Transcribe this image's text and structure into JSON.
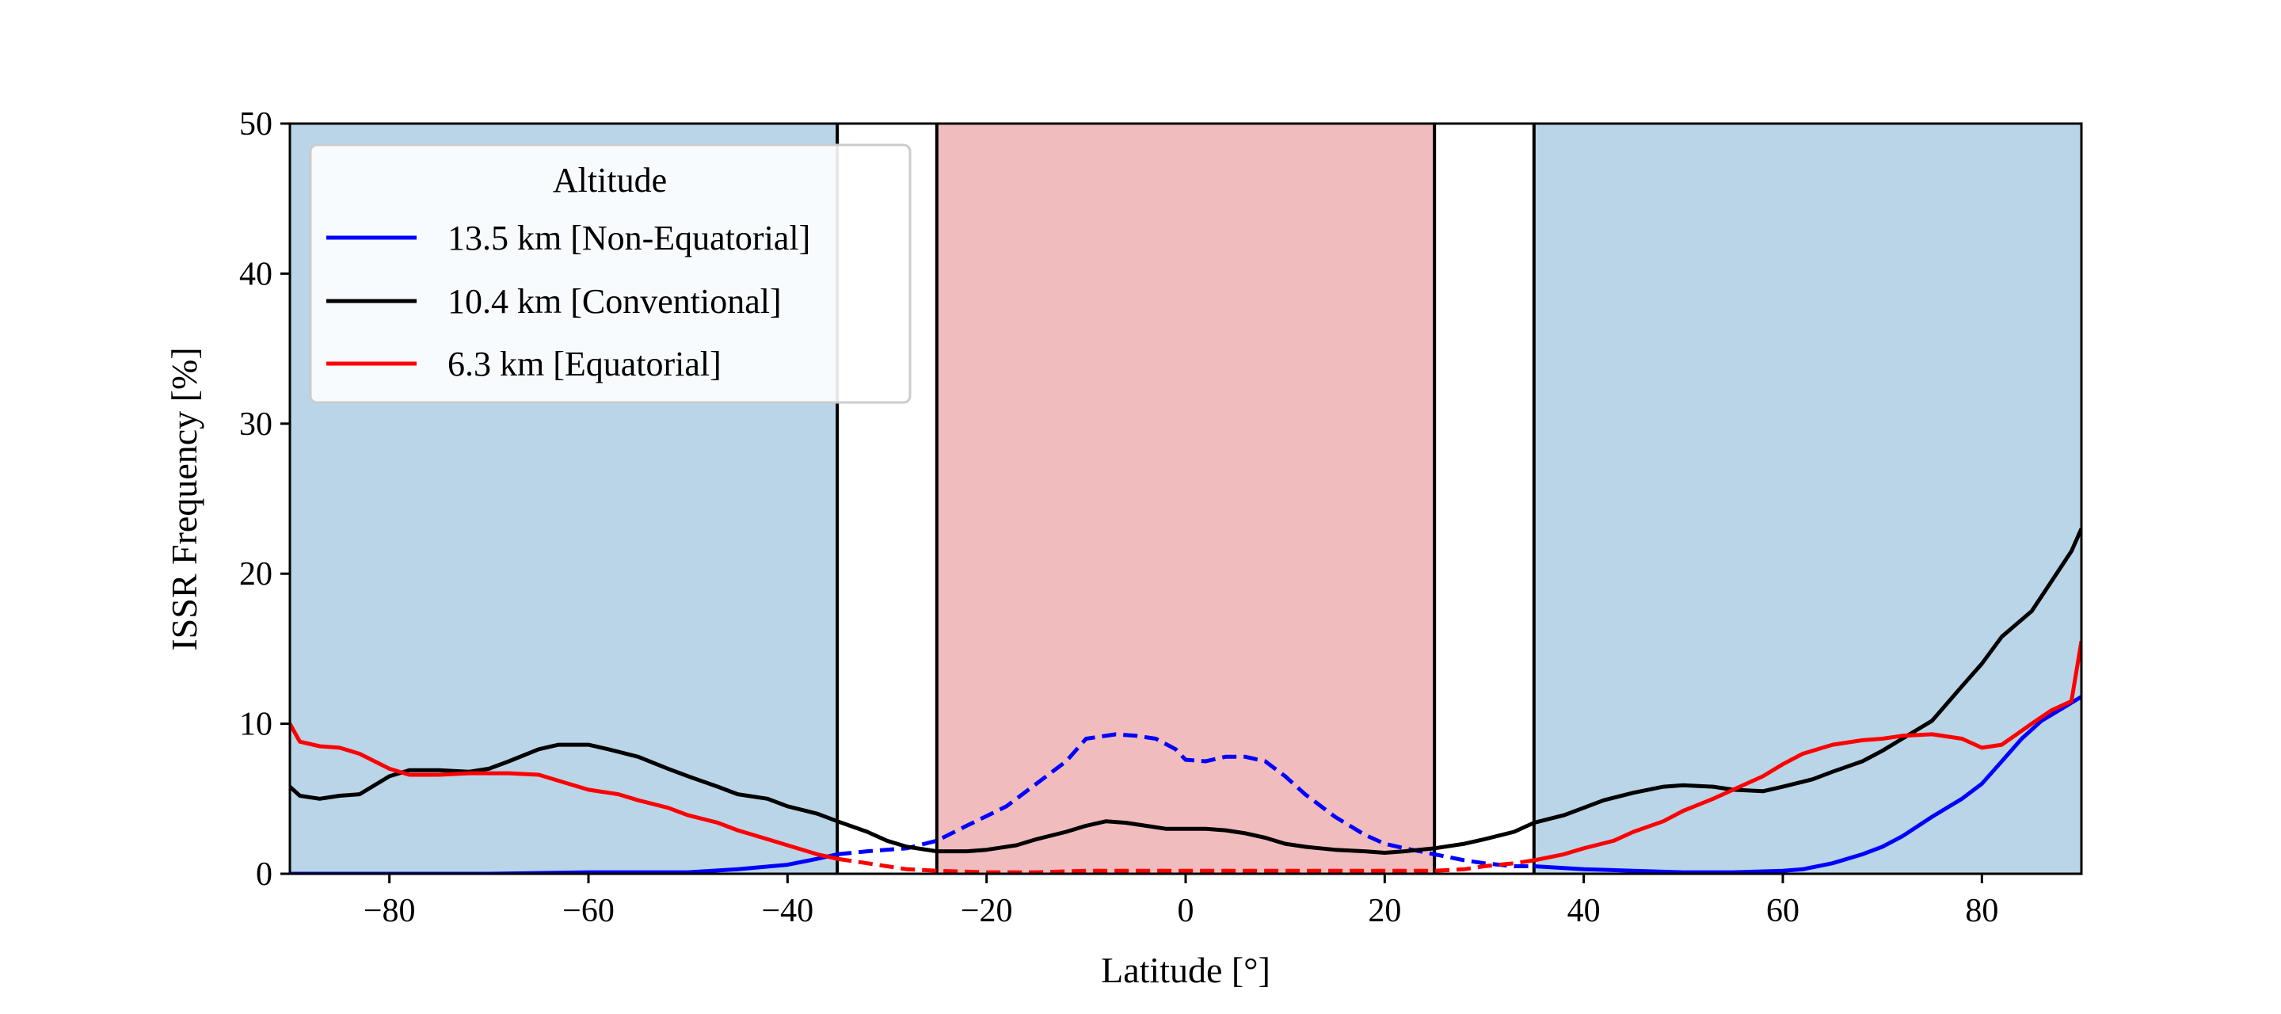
{
  "chart_data": {
    "type": "line",
    "title": "",
    "xlabel": "Latitude [°]",
    "ylabel": "ISSR Frequency [%]",
    "xlim": [
      -90,
      90
    ],
    "ylim": [
      0,
      50
    ],
    "xticks": [
      -80,
      -60,
      -40,
      -20,
      0,
      20,
      40,
      60,
      80
    ],
    "yticks": [
      0,
      10,
      20,
      30,
      40,
      50
    ],
    "xtick_labels": [
      "−80",
      "−60",
      "−40",
      "−20",
      "0",
      "20",
      "40",
      "60",
      "80"
    ],
    "ytick_labels": [
      "0",
      "10",
      "20",
      "30",
      "40",
      "50"
    ],
    "grid": false,
    "shaded_regions": [
      {
        "x": [
          -90,
          -35
        ],
        "color": "#bad5e8"
      },
      {
        "x": [
          -25,
          25
        ],
        "color": "#f0bcbe"
      },
      {
        "x": [
          35,
          90
        ],
        "color": "#bad5e8"
      }
    ],
    "vertical_lines": [
      -35,
      -25,
      25,
      35
    ],
    "legend": {
      "title": "Altitude",
      "position": "top-left",
      "entries": [
        {
          "label": "13.5 km [Non-Equatorial]",
          "color": "#0000ff"
        },
        {
          "label": "10.4 km [Conventional]",
          "color": "#000000"
        },
        {
          "label": "6.3 km [Equatorial]",
          "color": "#ff0000"
        }
      ]
    },
    "series": [
      {
        "name": "13.5 km [Non-Equatorial]",
        "color": "#0000ff",
        "x": [
          -90,
          -80,
          -70,
          -60,
          -55,
          -50,
          -45,
          -40,
          -37,
          -35,
          -32,
          -28,
          -25,
          -22,
          -18,
          -15,
          -12,
          -10,
          -7,
          -5,
          -3,
          -1,
          0,
          2,
          4,
          6,
          8,
          10,
          12,
          15,
          18,
          20,
          22,
          25,
          28,
          30,
          33,
          35,
          40,
          45,
          50,
          55,
          60,
          62,
          65,
          68,
          70,
          72,
          75,
          78,
          80,
          82,
          84,
          86,
          88,
          90
        ],
        "y": [
          0,
          0,
          0,
          0.1,
          0.1,
          0.1,
          0.3,
          0.6,
          1.0,
          1.3,
          1.5,
          1.7,
          2.2,
          3.2,
          4.5,
          6.0,
          7.5,
          9.0,
          9.3,
          9.2,
          9.0,
          8.3,
          7.6,
          7.5,
          7.8,
          7.8,
          7.5,
          6.5,
          5.3,
          3.8,
          2.6,
          2.0,
          1.7,
          1.3,
          0.9,
          0.7,
          0.5,
          0.5,
          0.3,
          0.2,
          0.1,
          0.1,
          0.2,
          0.3,
          0.7,
          1.3,
          1.8,
          2.5,
          3.8,
          5.0,
          6.0,
          7.5,
          9.0,
          10.2,
          11.0,
          11.8
        ],
        "dashed_x_range": [
          -35,
          35
        ]
      },
      {
        "name": "10.4 km [Conventional]",
        "color": "#000000",
        "x": [
          -90,
          -89,
          -87,
          -85,
          -83,
          -80,
          -78,
          -75,
          -72,
          -70,
          -68,
          -65,
          -63,
          -60,
          -58,
          -55,
          -52,
          -50,
          -47,
          -45,
          -42,
          -40,
          -37,
          -35,
          -32,
          -30,
          -28,
          -25,
          -22,
          -20,
          -17,
          -15,
          -12,
          -10,
          -8,
          -6,
          -4,
          -2,
          0,
          2,
          4,
          6,
          8,
          10,
          12,
          15,
          18,
          20,
          22,
          25,
          28,
          30,
          33,
          35,
          38,
          40,
          42,
          45,
          48,
          50,
          53,
          55,
          58,
          60,
          63,
          65,
          68,
          70,
          72,
          75,
          78,
          80,
          82,
          85,
          87,
          89,
          90
        ],
        "y": [
          5.8,
          5.2,
          5.0,
          5.2,
          5.3,
          6.5,
          6.9,
          6.9,
          6.8,
          7.0,
          7.5,
          8.3,
          8.6,
          8.6,
          8.3,
          7.8,
          7.0,
          6.5,
          5.8,
          5.3,
          5.0,
          4.5,
          4.0,
          3.5,
          2.8,
          2.2,
          1.8,
          1.5,
          1.5,
          1.6,
          1.9,
          2.3,
          2.8,
          3.2,
          3.5,
          3.4,
          3.2,
          3.0,
          3.0,
          3.0,
          2.9,
          2.7,
          2.4,
          2.0,
          1.8,
          1.6,
          1.5,
          1.4,
          1.5,
          1.7,
          2.0,
          2.3,
          2.8,
          3.4,
          3.9,
          4.4,
          4.9,
          5.4,
          5.8,
          5.9,
          5.8,
          5.6,
          5.5,
          5.8,
          6.3,
          6.8,
          7.5,
          8.2,
          9.0,
          10.2,
          12.5,
          14.0,
          15.8,
          17.5,
          19.5,
          21.5,
          23.0
        ]
      },
      {
        "name": "6.3 km [Equatorial]",
        "color": "#ff0000",
        "x": [
          -90,
          -89,
          -87,
          -85,
          -83,
          -80,
          -78,
          -75,
          -72,
          -70,
          -68,
          -65,
          -62,
          -60,
          -57,
          -55,
          -52,
          -50,
          -47,
          -45,
          -42,
          -40,
          -37,
          -35,
          -32,
          -30,
          -28,
          -25,
          -20,
          -15,
          -10,
          -5,
          0,
          5,
          10,
          15,
          20,
          25,
          28,
          30,
          33,
          35,
          38,
          40,
          43,
          45,
          48,
          50,
          53,
          55,
          58,
          60,
          62,
          65,
          68,
          70,
          72,
          75,
          78,
          80,
          82,
          85,
          87,
          89,
          90
        ],
        "y": [
          10.0,
          8.8,
          8.5,
          8.4,
          8.0,
          7.0,
          6.6,
          6.6,
          6.7,
          6.7,
          6.7,
          6.6,
          6.0,
          5.6,
          5.3,
          4.9,
          4.4,
          3.9,
          3.4,
          2.9,
          2.3,
          1.9,
          1.3,
          1.0,
          0.7,
          0.5,
          0.3,
          0.2,
          0.1,
          0.1,
          0.2,
          0.2,
          0.2,
          0.2,
          0.2,
          0.2,
          0.2,
          0.2,
          0.3,
          0.5,
          0.7,
          0.9,
          1.3,
          1.7,
          2.2,
          2.8,
          3.5,
          4.2,
          5.0,
          5.6,
          6.5,
          7.3,
          8.0,
          8.6,
          8.9,
          9.0,
          9.2,
          9.3,
          9.0,
          8.4,
          8.6,
          10.0,
          10.9,
          11.5,
          15.5
        ],
        "dashed_x_range": [
          -35,
          35
        ]
      }
    ]
  }
}
